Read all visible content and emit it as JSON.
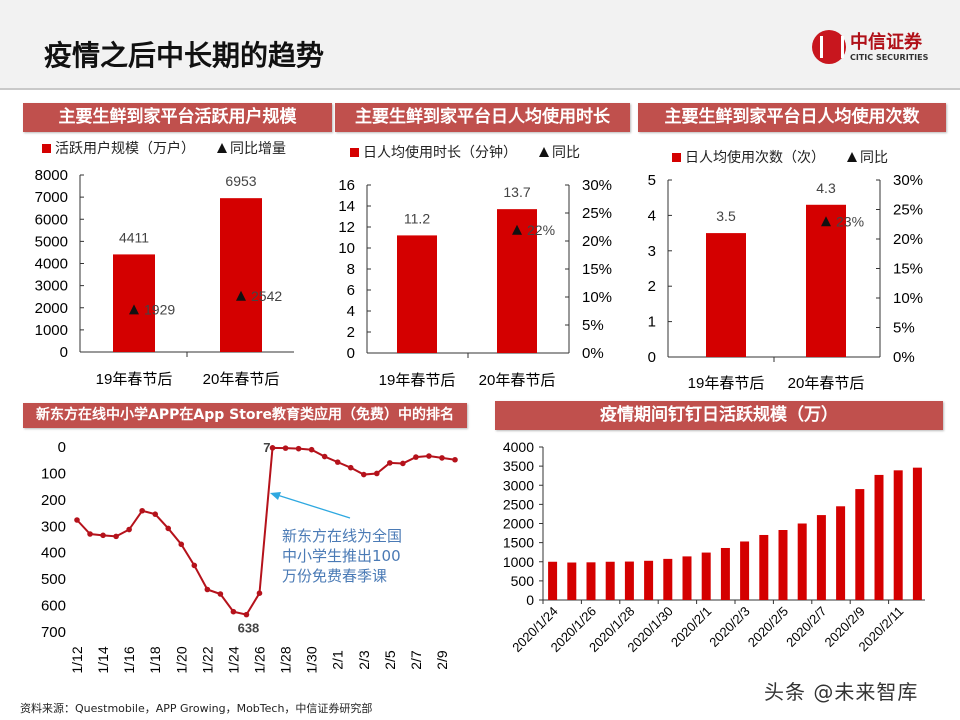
{
  "header": {
    "title": "疫情之后中长期的趋势",
    "logo_cn": "中信证券",
    "logo_en": "CITIC SECURITIES"
  },
  "footer": {
    "source": "资料来源：Questmobile，APP Growing，MobTech，中信证券研究部"
  },
  "watermark": "头条 @未来智库",
  "colors": {
    "bar": "#d40000",
    "line": "#b5121b",
    "title_bg": "#c0504d",
    "annotation": "#4a7ab5",
    "arrow": "#2ea8e0"
  },
  "chart_data": [
    {
      "type": "bar",
      "title": "主要生鲜到家平台活跃用户规模",
      "categories": [
        "19年春节后",
        "20年春节后"
      ],
      "series": [
        {
          "name": "活跃用户规模（万户）",
          "values": [
            4411,
            6953
          ],
          "data_labels": [
            "4411",
            "6953"
          ]
        },
        {
          "name": "同比增量",
          "marker": "triangle",
          "values": [
            1929,
            2542
          ],
          "data_labels": [
            "1929",
            "2542"
          ]
        }
      ],
      "ylim": [
        0,
        8000
      ],
      "yticks": [
        "0",
        "1000",
        "2000",
        "3000",
        "4000",
        "5000",
        "6000",
        "7000",
        "8000"
      ]
    },
    {
      "type": "bar",
      "title": "主要生鲜到家平台日人均使用时长",
      "categories": [
        "19年春节后",
        "20年春节后"
      ],
      "series": [
        {
          "name": "日人均使用时长（分钟）",
          "values": [
            11.2,
            13.7
          ],
          "data_labels": [
            "11.2",
            "13.7"
          ]
        },
        {
          "name": "同比",
          "marker": "triangle",
          "axis": "right",
          "values": [
            null,
            22
          ],
          "data_labels": [
            "",
            "22%"
          ]
        }
      ],
      "ylim": [
        0,
        16
      ],
      "yticks": [
        "0",
        "2",
        "4",
        "6",
        "8",
        "10",
        "12",
        "14",
        "16"
      ],
      "y2lim": [
        0,
        30
      ],
      "y2ticks": [
        "0%",
        "5%",
        "10%",
        "15%",
        "20%",
        "25%",
        "30%"
      ]
    },
    {
      "type": "bar",
      "title": "主要生鲜到家平台日人均使用次数",
      "categories": [
        "19年春节后",
        "20年春节后"
      ],
      "series": [
        {
          "name": "日人均使用次数（次）",
          "values": [
            3.5,
            4.3
          ],
          "data_labels": [
            "3.5",
            "4.3"
          ]
        },
        {
          "name": "同比",
          "marker": "triangle",
          "axis": "right",
          "values": [
            null,
            23
          ],
          "data_labels": [
            "",
            "23%"
          ]
        }
      ],
      "ylim": [
        0,
        5
      ],
      "yticks": [
        "0",
        "1",
        "2",
        "3",
        "4",
        "5"
      ],
      "y2lim": [
        0,
        30
      ],
      "y2ticks": [
        "0%",
        "5%",
        "10%",
        "15%",
        "20%",
        "25%",
        "30%"
      ]
    },
    {
      "type": "line",
      "title": "新东方在线中小学APP在App Store教育类应用（免费）中的排名",
      "y_inverted": true,
      "x": [
        "1/12",
        "1/13",
        "1/14",
        "1/15",
        "1/16",
        "1/17",
        "1/18",
        "1/19",
        "1/20",
        "1/21",
        "1/22",
        "1/23",
        "1/24",
        "1/25",
        "1/26",
        "1/27",
        "1/28",
        "1/29",
        "1/30",
        "1/31",
        "2/1",
        "2/2",
        "2/3",
        "2/4",
        "2/5",
        "2/6",
        "2/7",
        "2/8",
        "2/9",
        "2/10"
      ],
      "values": [
        280,
        333,
        338,
        342,
        316,
        245,
        258,
        312,
        372,
        452,
        543,
        560,
        627,
        638,
        557,
        7,
        8,
        10,
        14,
        40,
        61,
        82,
        108,
        104,
        64,
        66,
        42,
        38,
        45,
        52
      ],
      "xticks": [
        "1/12",
        "1/14",
        "1/16",
        "1/18",
        "1/20",
        "1/22",
        "1/24",
        "1/26",
        "1/28",
        "1/30",
        "2/1",
        "2/3",
        "2/5",
        "2/7",
        "2/9"
      ],
      "ylim": [
        0,
        700
      ],
      "yticks": [
        "0",
        "100",
        "200",
        "300",
        "400",
        "500",
        "600",
        "700"
      ],
      "data_labels": [
        {
          "x": "1/27",
          "label": "7"
        },
        {
          "x": "1/25",
          "label": "638"
        }
      ],
      "annotation": "新东方在线为全国\n中小学生推出100\n万份免费春季课"
    },
    {
      "type": "bar",
      "title": "疫情期间钉钉日活跃规模（万）",
      "x": [
        "2020/1/24",
        "2020/1/25",
        "2020/1/26",
        "2020/1/27",
        "2020/1/28",
        "2020/1/29",
        "2020/1/30",
        "2020/1/31",
        "2020/2/1",
        "2020/2/2",
        "2020/2/3",
        "2020/2/4",
        "2020/2/5",
        "2020/2/6",
        "2020/2/7",
        "2020/2/8",
        "2020/2/9",
        "2020/2/10",
        "2020/2/11",
        "2020/2/12"
      ],
      "values": [
        1000,
        980,
        985,
        1000,
        1005,
        1025,
        1075,
        1140,
        1240,
        1360,
        1530,
        1700,
        1830,
        2000,
        2220,
        2450,
        2900,
        3270,
        3390,
        3460
      ],
      "xticks": [
        "2020/1/24",
        "2020/1/26",
        "2020/1/28",
        "2020/1/30",
        "2020/2/1",
        "2020/2/3",
        "2020/2/5",
        "2020/2/7",
        "2020/2/9",
        "2020/2/11"
      ],
      "ylim": [
        0,
        4000
      ],
      "yticks": [
        "0",
        "500",
        "1000",
        "1500",
        "2000",
        "2500",
        "3000",
        "3500",
        "4000"
      ]
    }
  ]
}
